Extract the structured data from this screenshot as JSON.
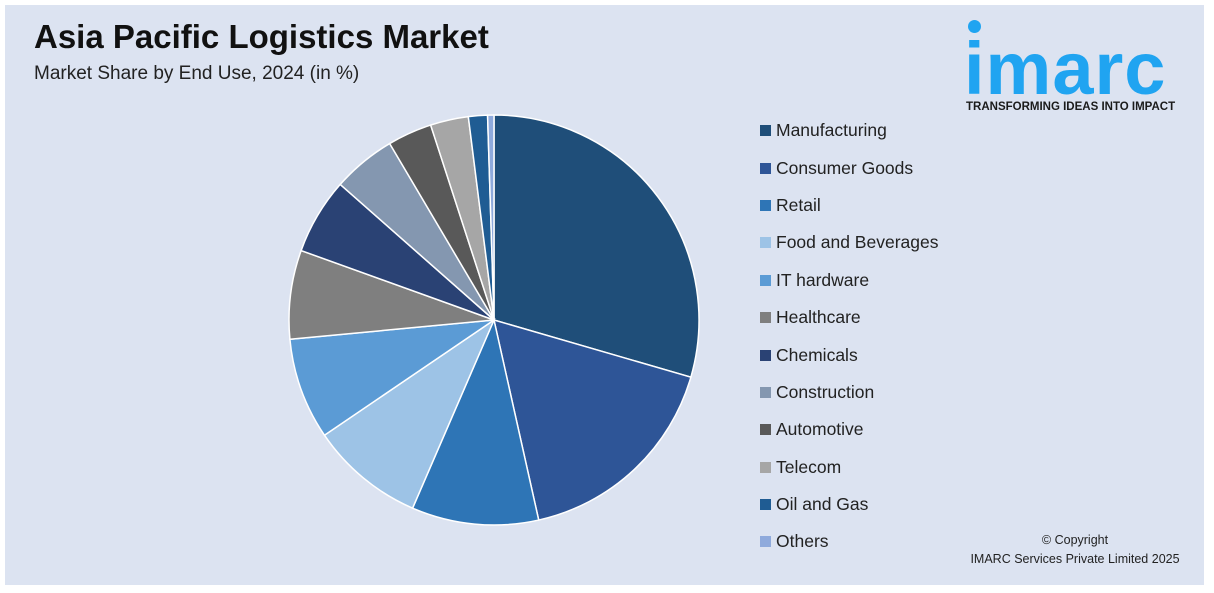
{
  "header": {
    "title": "Asia Pacific Logistics Market",
    "subtitle": "Market Share by End Use, 2024 (in %)"
  },
  "logo": {
    "wordmark": "imarc",
    "tagline": "TRANSFORMING IDEAS INTO IMPACT",
    "color": "#20a4f1"
  },
  "copyright": {
    "line1": "© Copyright",
    "line2": "IMARC Services Private Limited 2025"
  },
  "chart_data": {
    "type": "pie",
    "title": "Asia Pacific Logistics Market",
    "subtitle": "Market Share by End Use, 2024 (in %)",
    "legend_position": "right",
    "start_angle_deg": 0,
    "direction": "clockwise",
    "slices": [
      {
        "label": "Manufacturing",
        "value": 29.5,
        "color": "#1f4e79"
      },
      {
        "label": "Consumer Goods",
        "value": 17.0,
        "color": "#2e5597"
      },
      {
        "label": "Retail",
        "value": 10.0,
        "color": "#2e75b6"
      },
      {
        "label": "Food and Beverages",
        "value": 9.0,
        "color": "#9dc3e6"
      },
      {
        "label": "IT hardware",
        "value": 8.0,
        "color": "#5b9bd5"
      },
      {
        "label": "Healthcare",
        "value": 7.0,
        "color": "#7f7f7f"
      },
      {
        "label": "Chemicals",
        "value": 6.0,
        "color": "#2a4274"
      },
      {
        "label": "Construction",
        "value": 5.0,
        "color": "#8497b0"
      },
      {
        "label": "Automotive",
        "value": 3.5,
        "color": "#595959"
      },
      {
        "label": "Telecom",
        "value": 3.0,
        "color": "#a6a6a6"
      },
      {
        "label": "Oil and Gas",
        "value": 1.5,
        "color": "#1f5c93"
      },
      {
        "label": "Others",
        "value": 0.5,
        "color": "#8faadc"
      }
    ]
  }
}
